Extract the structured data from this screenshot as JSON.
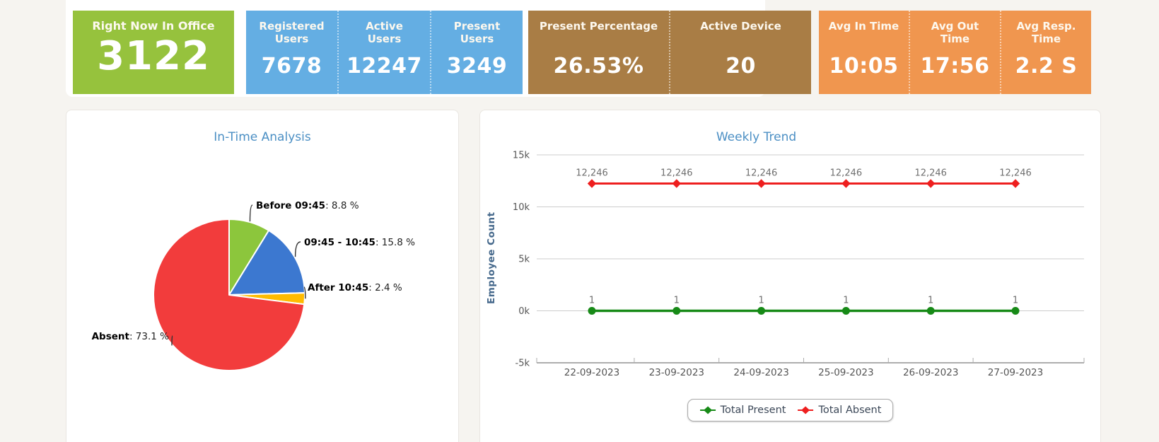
{
  "page": {
    "background_color": "#f6f4f0"
  },
  "stat_cards": {
    "right_now": {
      "title": "Right Now In Office",
      "value": "3122",
      "color": "#96c23d"
    },
    "users": {
      "color": "#64aee3",
      "items": [
        {
          "label": "Registered Users",
          "value": "7678"
        },
        {
          "label": "Active Users",
          "value": "12247"
        },
        {
          "label": "Present Users",
          "value": "3249"
        }
      ]
    },
    "presence": {
      "color": "#a97d45",
      "items": [
        {
          "label": "Present Percentage",
          "value": "26.53%"
        },
        {
          "label": "Active Device",
          "value": "20"
        }
      ]
    },
    "averages": {
      "color": "#f0964f",
      "items": [
        {
          "label": "Avg In Time",
          "value": "10:05"
        },
        {
          "label": "Avg Out Time",
          "value": "17:56"
        },
        {
          "label": "Avg Resp. Time",
          "value": "2.2 S"
        }
      ]
    }
  },
  "chart_data": [
    {
      "type": "pie",
      "title": "In-Time Analysis",
      "title_color": "#4b8fc4",
      "value_suffix": " %",
      "slices": [
        {
          "label": "Before 09:45",
          "value": 8.8,
          "display": "8.8 %",
          "color": "#8cc63c"
        },
        {
          "label": "09:45 - 10:45",
          "value": 15.8,
          "display": "15.8 %",
          "color": "#3c78d0"
        },
        {
          "label": "After 10:45",
          "value": 2.4,
          "display": "2.4 %",
          "color": "#ffbb00"
        },
        {
          "label": "Absent",
          "value": 73.1,
          "display": "73.1 %",
          "color": "#f23c3c"
        }
      ]
    },
    {
      "type": "line",
      "title": "Weekly Trend",
      "title_color": "#4b8fc4",
      "xlabel": "",
      "ylabel": "Employee Count",
      "ylim": [
        -5000,
        15000
      ],
      "grid": true,
      "legend_position": "bottom",
      "yticks": {
        "values": [
          15000,
          10000,
          5000,
          0,
          -5000
        ],
        "labels": [
          "15k",
          "10k",
          "5k",
          "0k",
          "-5k"
        ]
      },
      "categories": [
        "22-09-2023",
        "23-09-2023",
        "24-09-2023",
        "25-09-2023",
        "26-09-2023",
        "27-09-2023"
      ],
      "series": [
        {
          "name": "Total Present",
          "color": "#178a17",
          "values": [
            1,
            1,
            1,
            1,
            1,
            1
          ],
          "labels": [
            "1",
            "1",
            "1",
            "1",
            "1",
            "1"
          ]
        },
        {
          "name": "Total Absent",
          "color": "#ee1f1f",
          "values": [
            12246,
            12246,
            12246,
            12246,
            12246,
            12246
          ],
          "labels": [
            "12,246",
            "12,246",
            "12,246",
            "12,246",
            "12,246",
            "12,246"
          ]
        }
      ]
    }
  ]
}
